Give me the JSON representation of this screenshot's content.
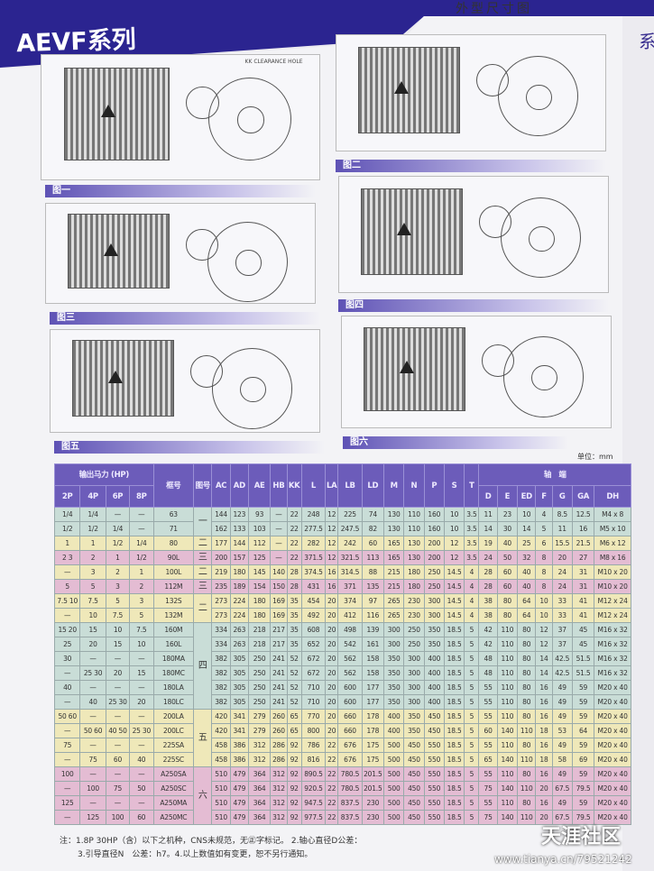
{
  "header": {
    "series_title": "AEVF系列",
    "sheet_title": "外型尺寸图",
    "side_char": "系"
  },
  "figures": {
    "labels": [
      "图一",
      "图二",
      "图三",
      "图四",
      "图五",
      "图六"
    ],
    "clearance_note": "KK CLEARANCE HOLE"
  },
  "unit": "单位：mm",
  "table": {
    "group_power": "输出马力 (HP)",
    "group_shaft": "轴　端",
    "power_cols": [
      "2P",
      "4P",
      "6P",
      "8P"
    ],
    "frame_col": "框号",
    "fig_col": "图号",
    "dim_cols": [
      "AC",
      "AD",
      "AE",
      "HB",
      "KK",
      "L",
      "LA",
      "LB",
      "LD",
      "M",
      "N",
      "P",
      "S",
      "T"
    ],
    "shaft_cols": [
      "D",
      "E",
      "ED",
      "F",
      "G",
      "GA",
      "DH"
    ],
    "rows": [
      [
        "1/4",
        "1/4",
        "—",
        "—",
        "63",
        "一",
        "144",
        "123",
        "93",
        "—",
        "22",
        "248",
        "12",
        "225",
        "74",
        "130",
        "110",
        "160",
        "10",
        "3.5",
        "11",
        "23",
        "10",
        "4",
        "8.5",
        "12.5",
        "M4 x 8"
      ],
      [
        "1/2",
        "1/2",
        "1/4",
        "—",
        "71",
        "一",
        "162",
        "133",
        "103",
        "—",
        "22",
        "277.5",
        "12",
        "247.5",
        "82",
        "130",
        "110",
        "160",
        "10",
        "3.5",
        "14",
        "30",
        "14",
        "5",
        "11",
        "16",
        "M5 x 10"
      ],
      [
        "1",
        "1",
        "1/2",
        "1/4",
        "80",
        "二",
        "177",
        "144",
        "112",
        "—",
        "22",
        "282",
        "12",
        "242",
        "60",
        "165",
        "130",
        "200",
        "12",
        "3.5",
        "19",
        "40",
        "25",
        "6",
        "15.5",
        "21.5",
        "M6 x 12"
      ],
      [
        "2 3",
        "2",
        "1",
        "1/2",
        "90L",
        "三",
        "200",
        "157",
        "125",
        "—",
        "22",
        "371.5",
        "12",
        "321.5",
        "113",
        "165",
        "130",
        "200",
        "12",
        "3.5",
        "24",
        "50",
        "32",
        "8",
        "20",
        "27",
        "M8 x 16"
      ],
      [
        "—",
        "3",
        "2",
        "1",
        "100L",
        "二",
        "219",
        "180",
        "145",
        "140",
        "28",
        "374.5",
        "16",
        "314.5",
        "88",
        "215",
        "180",
        "250",
        "14.5",
        "4",
        "28",
        "60",
        "40",
        "8",
        "24",
        "31",
        "M10 x 20"
      ],
      [
        "5",
        "5",
        "3",
        "2",
        "112M",
        "三",
        "235",
        "189",
        "154",
        "150",
        "28",
        "431",
        "16",
        "371",
        "135",
        "215",
        "180",
        "250",
        "14.5",
        "4",
        "28",
        "60",
        "40",
        "8",
        "24",
        "31",
        "M10 x 20"
      ],
      [
        "7.5 10",
        "7.5",
        "5",
        "3",
        "132S",
        "二",
        "273",
        "224",
        "180",
        "169",
        "35",
        "454",
        "20",
        "374",
        "97",
        "265",
        "230",
        "300",
        "14.5",
        "4",
        "38",
        "80",
        "64",
        "10",
        "33",
        "41",
        "M12 x 24"
      ],
      [
        "—",
        "10",
        "7.5",
        "5",
        "132M",
        "二",
        "273",
        "224",
        "180",
        "169",
        "35",
        "492",
        "20",
        "412",
        "116",
        "265",
        "230",
        "300",
        "14.5",
        "4",
        "38",
        "80",
        "64",
        "10",
        "33",
        "41",
        "M12 x 24"
      ],
      [
        "15 20",
        "15",
        "10",
        "7.5",
        "160M",
        "四",
        "334",
        "263",
        "218",
        "217",
        "35",
        "608",
        "20",
        "498",
        "139",
        "300",
        "250",
        "350",
        "18.5",
        "5",
        "42",
        "110",
        "80",
        "12",
        "37",
        "45",
        "M16 x 32"
      ],
      [
        "25",
        "20",
        "15",
        "10",
        "160L",
        "四",
        "334",
        "263",
        "218",
        "217",
        "35",
        "652",
        "20",
        "542",
        "161",
        "300",
        "250",
        "350",
        "18.5",
        "5",
        "42",
        "110",
        "80",
        "12",
        "37",
        "45",
        "M16 x 32"
      ],
      [
        "30",
        "—",
        "—",
        "—",
        "180MA",
        "四",
        "382",
        "305",
        "250",
        "241",
        "52",
        "672",
        "20",
        "562",
        "158",
        "350",
        "300",
        "400",
        "18.5",
        "5",
        "48",
        "110",
        "80",
        "14",
        "42.5",
        "51.5",
        "M16 x 32"
      ],
      [
        "—",
        "25 30",
        "20",
        "15",
        "180MC",
        "四",
        "382",
        "305",
        "250",
        "241",
        "52",
        "672",
        "20",
        "562",
        "158",
        "350",
        "300",
        "400",
        "18.5",
        "5",
        "48",
        "110",
        "80",
        "14",
        "42.5",
        "51.5",
        "M16 x 32"
      ],
      [
        "40",
        "—",
        "—",
        "—",
        "180LA",
        "四",
        "382",
        "305",
        "250",
        "241",
        "52",
        "710",
        "20",
        "600",
        "177",
        "350",
        "300",
        "400",
        "18.5",
        "5",
        "55",
        "110",
        "80",
        "16",
        "49",
        "59",
        "M20 x 40"
      ],
      [
        "—",
        "40",
        "25 30",
        "20",
        "180LC",
        "四",
        "382",
        "305",
        "250",
        "241",
        "52",
        "710",
        "20",
        "600",
        "177",
        "350",
        "300",
        "400",
        "18.5",
        "5",
        "55",
        "110",
        "80",
        "16",
        "49",
        "59",
        "M20 x 40"
      ],
      [
        "50 60",
        "—",
        "—",
        "—",
        "200LA",
        "五",
        "420",
        "341",
        "279",
        "260",
        "65",
        "770",
        "20",
        "660",
        "178",
        "400",
        "350",
        "450",
        "18.5",
        "5",
        "55",
        "110",
        "80",
        "16",
        "49",
        "59",
        "M20 x 40"
      ],
      [
        "—",
        "50 60",
        "40 50",
        "25 30",
        "200LC",
        "五",
        "420",
        "341",
        "279",
        "260",
        "65",
        "800",
        "20",
        "660",
        "178",
        "400",
        "350",
        "450",
        "18.5",
        "5",
        "60",
        "140",
        "110",
        "18",
        "53",
        "64",
        "M20 x 40"
      ],
      [
        "75",
        "—",
        "—",
        "—",
        "225SA",
        "五",
        "458",
        "386",
        "312",
        "286",
        "92",
        "786",
        "22",
        "676",
        "175",
        "500",
        "450",
        "550",
        "18.5",
        "5",
        "55",
        "110",
        "80",
        "16",
        "49",
        "59",
        "M20 x 40"
      ],
      [
        "—",
        "75",
        "60",
        "40",
        "225SC",
        "五",
        "458",
        "386",
        "312",
        "286",
        "92",
        "816",
        "22",
        "676",
        "175",
        "500",
        "450",
        "550",
        "18.5",
        "5",
        "65",
        "140",
        "110",
        "18",
        "58",
        "69",
        "M20 x 40"
      ],
      [
        "100",
        "—",
        "—",
        "—",
        "A250SA",
        "六",
        "510",
        "479",
        "364",
        "312",
        "92",
        "890.5",
        "22",
        "780.5",
        "201.5",
        "500",
        "450",
        "550",
        "18.5",
        "5",
        "55",
        "110",
        "80",
        "16",
        "49",
        "59",
        "M20 x 40"
      ],
      [
        "—",
        "100",
        "75",
        "50",
        "A250SC",
        "六",
        "510",
        "479",
        "364",
        "312",
        "92",
        "920.5",
        "22",
        "780.5",
        "201.5",
        "500",
        "450",
        "550",
        "18.5",
        "5",
        "75",
        "140",
        "110",
        "20",
        "67.5",
        "79.5",
        "M20 x 40"
      ],
      [
        "125",
        "—",
        "—",
        "—",
        "A250MA",
        "六",
        "510",
        "479",
        "364",
        "312",
        "92",
        "947.5",
        "22",
        "837.5",
        "230",
        "500",
        "450",
        "550",
        "18.5",
        "5",
        "55",
        "110",
        "80",
        "16",
        "49",
        "59",
        "M20 x 40"
      ],
      [
        "—",
        "125",
        "100",
        "60",
        "A250MC",
        "六",
        "510",
        "479",
        "364",
        "312",
        "92",
        "977.5",
        "22",
        "837.5",
        "230",
        "500",
        "450",
        "550",
        "18.5",
        "5",
        "75",
        "140",
        "110",
        "20",
        "67.5",
        "79.5",
        "M20 x 40"
      ]
    ]
  },
  "row_colors": {
    "一": "#c9ddd7",
    "二": "#efe8b9",
    "三": "#e4bcd3",
    "四": "#c9ddd7",
    "五": "#efe8b9",
    "六": "#e4bcd3"
  },
  "notes": {
    "line1": "注：1.8P 30HP（含）以下之机种，CNS未规范，无㊣字标记。 2.轴心直径D公差：",
    "line2": "3.引导直径N　公差：h7。4.以上数值如有变更，恕不另行通知。"
  },
  "watermark": {
    "brand": "天涯社区",
    "url": "www.tianya.cn/79521242"
  }
}
